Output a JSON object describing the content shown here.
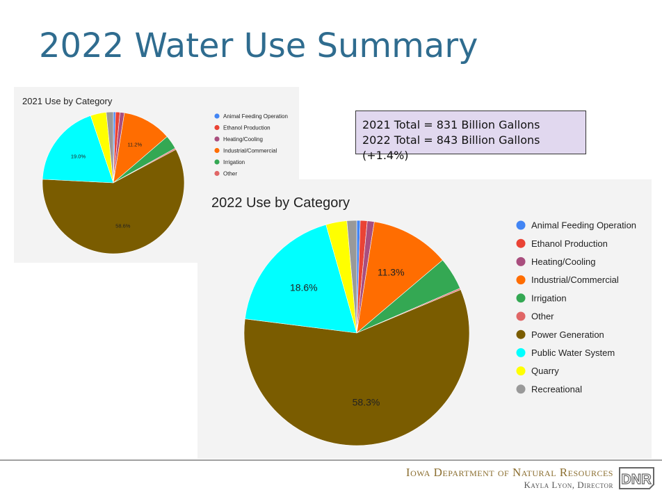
{
  "slide": {
    "title": "2022 Water Use Summary",
    "totals": {
      "line1": "2021 Total = 831 Billion Gallons",
      "line2": "2022 Total = 843 Billion Gallons (+1.4%)"
    }
  },
  "footer": {
    "org": "Iowa Department of Natural Resources",
    "director": "Kayla Lyon, Director",
    "logo_text": "DNR"
  },
  "chart_data": [
    {
      "type": "pie",
      "title": "2021 Use by Category",
      "categories": [
        "Animal Feeding Operation",
        "Ethanol Production",
        "Heating/Cooling",
        "Industrial/Commercial",
        "Irrigation",
        "Other",
        "Power Generation",
        "Public Water System",
        "Quarry",
        "Recreational"
      ],
      "values": [
        0.5,
        1.0,
        1.0,
        11.2,
        3.2,
        0.3,
        58.6,
        19.0,
        3.6,
        1.6
      ],
      "data_labels": [
        "",
        "",
        "",
        "11.2%",
        "",
        "",
        "58.6%",
        "19.0%",
        "",
        ""
      ],
      "colors": [
        "#4285f4",
        "#ea4335",
        "#a94e7e",
        "#ff6d01",
        "#34a853",
        "#e06666",
        "#7a5c00",
        "#00ffff",
        "#ffff00",
        "#999999"
      ],
      "legend_visible": [
        "Animal Feeding Operation",
        "Ethanol Production",
        "Heating/Cooling",
        "Industrial/Commercial",
        "Irrigation",
        "Other"
      ],
      "legend_position": "right"
    },
    {
      "type": "pie",
      "title": "2022 Use by Category",
      "categories": [
        "Animal Feeding Operation",
        "Ethanol Production",
        "Heating/Cooling",
        "Industrial/Commercial",
        "Irrigation",
        "Other",
        "Power Generation",
        "Public Water System",
        "Quarry",
        "Recreational"
      ],
      "values": [
        0.5,
        1.0,
        1.0,
        11.3,
        4.7,
        0.2,
        58.3,
        18.6,
        3.0,
        1.4
      ],
      "data_labels": [
        "",
        "",
        "",
        "11.3%",
        "",
        "",
        "58.3%",
        "18.6%",
        "",
        ""
      ],
      "colors": [
        "#4285f4",
        "#ea4335",
        "#a94e7e",
        "#ff6d01",
        "#34a853",
        "#e06666",
        "#7a5c00",
        "#00ffff",
        "#ffff00",
        "#999999"
      ],
      "legend_visible": [
        "Animal Feeding Operation",
        "Ethanol Production",
        "Heating/Cooling",
        "Industrial/Commercial",
        "Irrigation",
        "Other",
        "Power Generation",
        "Public Water System",
        "Quarry",
        "Recreational"
      ],
      "legend_position": "right"
    }
  ]
}
